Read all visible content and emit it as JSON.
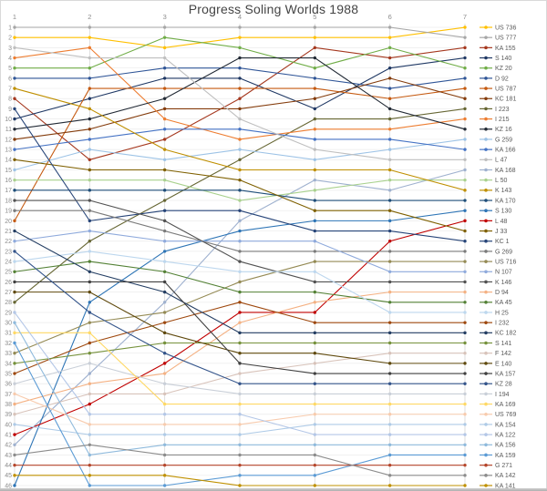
{
  "chart_data": {
    "type": "line",
    "variant": "bump-chart-rank-progress",
    "title": "Progress Soling Worlds 1988",
    "xlabel": "",
    "ylabel": "",
    "x": [
      1,
      2,
      3,
      4,
      5,
      6,
      7
    ],
    "ylim": [
      1,
      46
    ],
    "y_inverted": true,
    "grid": "on",
    "legend_position": "right",
    "axis_text_color": "#8c8c8c",
    "legend_text_color": "#595959",
    "series": [
      {
        "name": "US 736",
        "color": "#FFC000",
        "values": [
          2,
          2,
          3,
          2,
          2,
          2,
          1
        ]
      },
      {
        "name": "US 777",
        "color": "#A6A6A6",
        "values": [
          1,
          1,
          1,
          1,
          1,
          1,
          2
        ]
      },
      {
        "name": "KA 155",
        "color": "#A5381F",
        "values": [
          8,
          14,
          12,
          8,
          3,
          4,
          3
        ]
      },
      {
        "name": "S 140",
        "color": "#1F3864",
        "values": [
          10,
          8,
          6,
          6,
          9,
          5,
          4
        ]
      },
      {
        "name": "KZ 20",
        "color": "#70AD47",
        "values": [
          5,
          5,
          2,
          3,
          5,
          3,
          5
        ]
      },
      {
        "name": "D 92",
        "color": "#2F5597",
        "values": [
          6,
          6,
          5,
          5,
          6,
          7,
          6
        ]
      },
      {
        "name": "US 787",
        "color": "#C55A11",
        "values": [
          20,
          7,
          7,
          7,
          7,
          8,
          7
        ]
      },
      {
        "name": "KC 181",
        "color": "#843C0C",
        "values": [
          12,
          11,
          9,
          9,
          8,
          6,
          8
        ]
      },
      {
        "name": "I 223",
        "color": "#666633",
        "values": [
          28,
          22,
          18,
          14,
          10,
          10,
          9
        ]
      },
      {
        "name": "I 215",
        "color": "#ED7D31",
        "values": [
          4,
          3,
          10,
          12,
          11,
          11,
          10
        ]
      },
      {
        "name": "KZ 16",
        "color": "#222A35",
        "values": [
          11,
          10,
          8,
          4,
          4,
          9,
          11
        ]
      },
      {
        "name": "G 259",
        "color": "#9DC3E6",
        "values": [
          15,
          13,
          14,
          13,
          14,
          13,
          12
        ]
      },
      {
        "name": "KA 166",
        "color": "#4472C4",
        "values": [
          13,
          12,
          11,
          11,
          12,
          12,
          13
        ]
      },
      {
        "name": "L 47",
        "color": "#BFBFBF",
        "values": [
          3,
          4,
          4,
          10,
          13,
          14,
          14
        ]
      },
      {
        "name": "KA 168",
        "color": "#9FB1CF",
        "values": [
          42,
          35,
          28,
          20,
          16,
          17,
          15
        ]
      },
      {
        "name": "L 50",
        "color": "#A9D18E",
        "values": [
          16,
          16,
          16,
          18,
          17,
          16,
          16
        ]
      },
      {
        "name": "K 143",
        "color": "#BF8F00",
        "values": [
          7,
          9,
          13,
          15,
          15,
          15,
          17
        ]
      },
      {
        "name": "KA 170",
        "color": "#1F4E79",
        "values": [
          17,
          17,
          17,
          17,
          18,
          18,
          18
        ]
      },
      {
        "name": "S 130",
        "color": "#2E75B6",
        "values": [
          46,
          28,
          23,
          21,
          20,
          20,
          19
        ]
      },
      {
        "name": "L 48",
        "color": "#C00000",
        "values": [
          41,
          38,
          34,
          29,
          29,
          22,
          20
        ]
      },
      {
        "name": "J 33",
        "color": "#7F6000",
        "values": [
          14,
          15,
          15,
          16,
          19,
          19,
          21
        ]
      },
      {
        "name": "KC 1",
        "color": "#264478",
        "values": [
          9,
          20,
          19,
          19,
          21,
          21,
          22
        ]
      },
      {
        "name": "G 269",
        "color": "#7B7B7B",
        "values": [
          19,
          19,
          21,
          23,
          23,
          23,
          23
        ]
      },
      {
        "name": "US 716",
        "color": "#948A54",
        "values": [
          33,
          30,
          29,
          26,
          24,
          24,
          24
        ]
      },
      {
        "name": "N 107",
        "color": "#8FAADC",
        "values": [
          22,
          21,
          22,
          22,
          22,
          25,
          25
        ]
      },
      {
        "name": "K 146",
        "color": "#525252",
        "values": [
          18,
          18,
          20,
          24,
          26,
          26,
          26
        ]
      },
      {
        "name": "D 94",
        "color": "#F4B183",
        "values": [
          38,
          36,
          35,
          30,
          28,
          27,
          27
        ]
      },
      {
        "name": "KA 45",
        "color": "#538135",
        "values": [
          25,
          24,
          25,
          27,
          27,
          28,
          28
        ]
      },
      {
        "name": "H 25",
        "color": "#BDD7EE",
        "values": [
          24,
          23,
          24,
          25,
          25,
          29,
          29
        ]
      },
      {
        "name": "I 232",
        "color": "#9E480E",
        "values": [
          35,
          32,
          30,
          28,
          30,
          30,
          30
        ]
      },
      {
        "name": "KC 182",
        "color": "#243E63",
        "values": [
          21,
          25,
          27,
          31,
          31,
          31,
          31
        ]
      },
      {
        "name": "S 141",
        "color": "#76923C",
        "values": [
          34,
          33,
          32,
          32,
          32,
          32,
          32
        ]
      },
      {
        "name": "F 142",
        "color": "#D8C3BA",
        "values": [
          39,
          37,
          37,
          35,
          34,
          33,
          33
        ]
      },
      {
        "name": "E 140",
        "color": "#604A0E",
        "values": [
          27,
          27,
          31,
          33,
          33,
          34,
          34
        ]
      },
      {
        "name": "KA 157",
        "color": "#404040",
        "values": [
          26,
          26,
          26,
          34,
          35,
          35,
          35
        ]
      },
      {
        "name": "KZ 28",
        "color": "#34558B",
        "values": [
          23,
          29,
          33,
          36,
          36,
          36,
          36
        ]
      },
      {
        "name": "I 194",
        "color": "#C9CFD8",
        "values": [
          36,
          34,
          36,
          37,
          37,
          37,
          37
        ]
      },
      {
        "name": "KA 169",
        "color": "#FFD966",
        "values": [
          31,
          31,
          38,
          38,
          38,
          38,
          38
        ]
      },
      {
        "name": "US 769",
        "color": "#F8CBAD",
        "values": [
          37,
          40,
          40,
          40,
          39,
          39,
          39
        ]
      },
      {
        "name": "KA 154",
        "color": "#AFCBE7",
        "values": [
          40,
          41,
          41,
          41,
          40,
          40,
          40
        ]
      },
      {
        "name": "KA 122",
        "color": "#B4C7E7",
        "values": [
          29,
          39,
          39,
          39,
          41,
          41,
          41
        ]
      },
      {
        "name": "KA 156",
        "color": "#8FBADC",
        "values": [
          30,
          43,
          42,
          42,
          42,
          42,
          42
        ]
      },
      {
        "name": "KA 159",
        "color": "#5B9BD5",
        "values": [
          32,
          46,
          46,
          45,
          45,
          43,
          43
        ]
      },
      {
        "name": "G 271",
        "color": "#B5452A",
        "values": [
          44,
          44,
          44,
          44,
          44,
          44,
          44
        ]
      },
      {
        "name": "KA 142",
        "color": "#8C8C8C",
        "values": [
          43,
          42,
          43,
          43,
          43,
          45,
          45
        ]
      },
      {
        "name": "KA 141",
        "color": "#BF9000",
        "values": [
          45,
          45,
          45,
          46,
          46,
          46,
          46
        ]
      }
    ]
  }
}
